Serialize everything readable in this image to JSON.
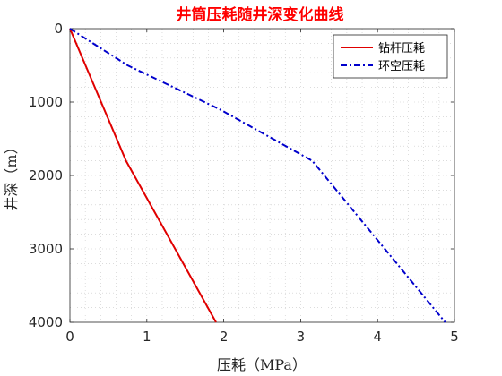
{
  "chart_data": {
    "type": "line",
    "title": "井筒压耗随井深变化曲线",
    "xlabel": "压耗（MPa）",
    "ylabel": "井深（m）",
    "xlim": [
      0,
      5
    ],
    "ylim": [
      0,
      4000
    ],
    "y_reversed": true,
    "x_ticks": [
      "0",
      "1",
      "2",
      "3",
      "4",
      "5"
    ],
    "y_ticks": [
      "0",
      "1000",
      "2000",
      "3000",
      "4000"
    ],
    "grid": "minor-dotted",
    "legend_position": "top-right",
    "series": [
      {
        "name": "钻杆压耗",
        "color": "#e00000",
        "style": "solid",
        "points": [
          [
            0,
            0
          ],
          [
            0.73,
            1800
          ],
          [
            1.9,
            4000
          ]
        ]
      },
      {
        "name": "环空压耗",
        "color": "#0000cc",
        "style": "dash-dot",
        "points": [
          [
            0,
            0
          ],
          [
            0.75,
            500
          ],
          [
            1.95,
            1100
          ],
          [
            3.15,
            1800
          ],
          [
            4.88,
            4000
          ]
        ]
      }
    ]
  }
}
